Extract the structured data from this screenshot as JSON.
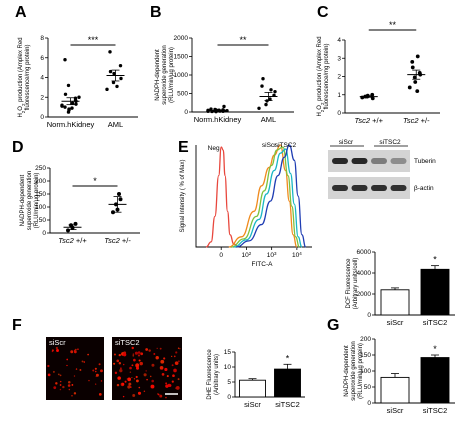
{
  "panel_labels": [
    "A",
    "B",
    "C",
    "D",
    "E",
    "F",
    "G"
  ],
  "chart_data": [
    {
      "id": "A",
      "type": "scatter",
      "ylabel": "H2O2 production (Amplex Red fluorescence/mg protein)",
      "ylabel_parts": [
        "H",
        "2",
        "O",
        "2",
        " production (Amplex Red",
        "fluorescence/mg protein)"
      ],
      "yticks": [
        "0",
        "2",
        "4",
        "6",
        "8"
      ],
      "ylim": [
        0,
        8
      ],
      "categories": [
        "Norm.hKidney",
        "AML"
      ],
      "points": [
        [
          1.2,
          0.5,
          0.8,
          1.9,
          1.6,
          1.0,
          2.3,
          0.9,
          1.4,
          2.0,
          1.1,
          3.2,
          0.7,
          1.7,
          1.3,
          5.8
        ],
        [
          2.8,
          3.5,
          4.4,
          5.2,
          3.9,
          6.6,
          4.6,
          3.1
        ]
      ],
      "means": [
        1.6,
        4.2
      ],
      "sems": [
        0.35,
        0.55
      ],
      "significance": "***"
    },
    {
      "id": "B",
      "type": "scatter",
      "ylabel": "NADPH-dependent superoxide generation (RLU/min/ug protein)",
      "ylabel_parts": [
        "NADPH-dependent",
        "superoxide generation",
        "(RLU/min/µg protein)"
      ],
      "yticks": [
        "0",
        "500",
        "1000",
        "1500",
        "2000"
      ],
      "ylim": [
        0,
        2000
      ],
      "categories": [
        "Norm.hKidney",
        "AML"
      ],
      "points": [
        [
          20,
          40,
          10,
          60,
          30,
          80,
          15,
          50,
          25,
          35,
          45,
          70,
          55,
          20,
          150
        ],
        [
          100,
          200,
          300,
          450,
          550,
          700,
          900,
          350,
          600
        ]
      ],
      "means": [
        40,
        420
      ],
      "sems": [
        15,
        110
      ],
      "significance": "**"
    },
    {
      "id": "C",
      "type": "scatter",
      "ylabel": "H2O2 production (Amplex Red fluorescence/mg protein)",
      "ylabel_parts": [
        "H",
        "2",
        "O",
        "2",
        " production (Amplex Red",
        "fluorescence/mg protein)"
      ],
      "yticks": [
        "0",
        "1",
        "2",
        "3",
        "4"
      ],
      "ylim": [
        0,
        4
      ],
      "categories": [
        "Tsc2 +/+",
        "Tsc2 +/-"
      ],
      "categories_italic_part": [
        "Tsc2",
        "Tsc2"
      ],
      "categories_suffix": [
        " +/+",
        " +/-"
      ],
      "points": [
        [
          0.85,
          0.95,
          0.9,
          0.8,
          1.0,
          0.9
        ],
        [
          1.4,
          1.7,
          1.95,
          2.1,
          2.2,
          2.5,
          2.8,
          3.1,
          1.2
        ]
      ],
      "means": [
        0.9,
        2.1
      ],
      "sems": [
        0.04,
        0.25
      ],
      "significance": "**"
    },
    {
      "id": "D",
      "type": "scatter",
      "ylabel": "NADPH-dependent superoxide generation (RLU/min/ug protein)",
      "ylabel_parts": [
        "NADPH-dependent",
        "superoxide generation",
        "(RLU/min/µg protein)"
      ],
      "yticks": [
        "0",
        "50",
        "100",
        "150",
        "200",
        "250"
      ],
      "ylim": [
        0,
        250
      ],
      "categories": [
        "Tsc2 +/+",
        "Tsc2 +/-"
      ],
      "categories_italic_part": [
        "Tsc2",
        "Tsc2"
      ],
      "categories_suffix": [
        " +/+",
        " +/-"
      ],
      "points": [
        [
          10,
          20,
          30,
          35
        ],
        [
          80,
          90,
          110,
          130,
          150
        ]
      ],
      "means": [
        22,
        110
      ],
      "sems": [
        9,
        30
      ],
      "significance": "*"
    },
    {
      "id": "E-flow",
      "type": "line",
      "ylabel": "Signal Intensity ( % of Max)",
      "xlabel": "FITC-A",
      "xtick_bases": [
        "0",
        "10",
        "10",
        "10"
      ],
      "xtick_exps": [
        "",
        "2",
        "3",
        "4"
      ],
      "xtick_pos": [
        0,
        1,
        2,
        3
      ],
      "annotations": [
        "Neg",
        "siScr",
        "siTSC2"
      ],
      "series": [
        {
          "color": "#e8473d",
          "x": [
            -0.6,
            -0.4,
            -0.25,
            -0.1,
            0,
            0.08,
            0.15,
            0.25,
            0.35,
            0.5,
            0.7
          ],
          "y": [
            0,
            0.05,
            0.3,
            0.7,
            0.98,
            0.95,
            0.7,
            0.35,
            0.12,
            0.03,
            0
          ]
        },
        {
          "color": "#f08a1c",
          "x": [
            0.3,
            0.8,
            1.3,
            1.6,
            1.9,
            2.1,
            2.35,
            2.55,
            2.7,
            2.85,
            3.0
          ],
          "y": [
            0,
            0.1,
            0.35,
            0.6,
            0.78,
            0.9,
            1.0,
            0.75,
            0.45,
            0.12,
            0
          ]
        },
        {
          "color": "#7cc23e",
          "x": [
            0.4,
            0.9,
            1.4,
            1.7,
            2.0,
            2.2,
            2.45,
            2.65,
            2.8,
            2.95,
            3.1
          ],
          "y": [
            0,
            0.08,
            0.3,
            0.55,
            0.8,
            0.95,
            0.98,
            0.7,
            0.4,
            0.1,
            0
          ]
        },
        {
          "color": "#19b7c4",
          "x": [
            0.5,
            1.0,
            1.5,
            1.8,
            2.1,
            2.35,
            2.55,
            2.75,
            2.9,
            3.05,
            3.2
          ],
          "y": [
            0,
            0.07,
            0.27,
            0.52,
            0.75,
            0.92,
            0.96,
            0.72,
            0.42,
            0.1,
            0
          ]
        },
        {
          "color": "#1f3db3",
          "x": [
            0.6,
            1.1,
            1.6,
            1.95,
            2.25,
            2.5,
            2.7,
            2.9,
            3.05,
            3.2,
            3.35
          ],
          "y": [
            0,
            0.06,
            0.22,
            0.45,
            0.7,
            0.88,
            1.0,
            0.85,
            0.5,
            0.12,
            0
          ]
        }
      ]
    },
    {
      "id": "E-blot",
      "type": "other",
      "headers": [
        "siScr",
        "siTSC2"
      ],
      "rows": [
        "Tuberin",
        "β-actin"
      ],
      "lanes": 4,
      "band_intensity": [
        [
          0.95,
          0.95,
          0.45,
          0.35
        ],
        [
          0.9,
          0.9,
          0.9,
          0.88
        ]
      ]
    },
    {
      "id": "E-bar",
      "type": "bar",
      "ylabel": "DCF Fluorescence (Arbitrary units/cell)",
      "ylabel_parts": [
        "DCF Fluorescence",
        "(Arbitrary units/cell)"
      ],
      "yticks": [
        "0",
        "2000",
        "4000",
        "6000"
      ],
      "ylim": [
        0,
        6000
      ],
      "categories": [
        "siScr",
        "siTSC2"
      ],
      "values": [
        2400,
        4350
      ],
      "errors": [
        180,
        350
      ],
      "fills": [
        "#ffffff",
        "#000000"
      ],
      "significance": "*"
    },
    {
      "id": "F-images",
      "type": "other",
      "labels": [
        "siScr",
        "siTSC2"
      ]
    },
    {
      "id": "F-bar",
      "type": "bar",
      "ylabel": "DHE Fluorescence (Arbitrary units)",
      "ylabel_parts": [
        "DHE Fluorescence",
        "(Arbitrary units)"
      ],
      "yticks": [
        "0",
        "5",
        "10",
        "15"
      ],
      "ylim": [
        0,
        15
      ],
      "categories": [
        "siScr",
        "siTSC2"
      ],
      "values": [
        5.6,
        9.3
      ],
      "errors": [
        0.5,
        1.6
      ],
      "fills": [
        "#ffffff",
        "#000000"
      ],
      "significance": "*"
    },
    {
      "id": "G",
      "type": "bar",
      "ylabel": "NADPH-dependent superoxide generation (RLU/min/ug protein)",
      "ylabel_parts": [
        "NADPH-dependent",
        "superoxide generation",
        "(RLU/min/µg protein)"
      ],
      "yticks": [
        "0",
        "50",
        "100",
        "150",
        "200"
      ],
      "ylim": [
        0,
        200
      ],
      "categories": [
        "siScr",
        "siTSC2"
      ],
      "values": [
        80,
        142
      ],
      "errors": [
        12,
        8
      ],
      "fills": [
        "#ffffff",
        "#000000"
      ],
      "significance": "*"
    }
  ]
}
